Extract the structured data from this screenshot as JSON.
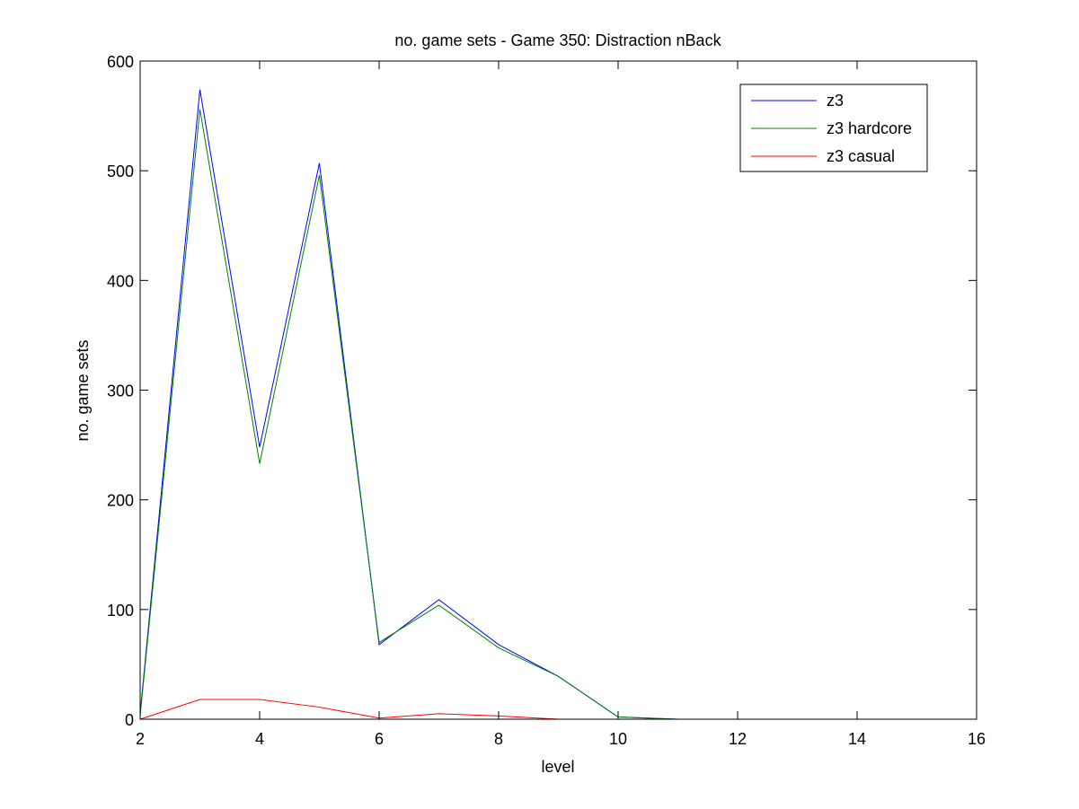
{
  "chart_data": {
    "type": "line",
    "title": "no. game sets - Game 350: Distraction nBack",
    "xlabel": "level",
    "ylabel": "no. game sets",
    "xlim": [
      2,
      16
    ],
    "ylim": [
      0,
      600
    ],
    "x_ticks": [
      2,
      4,
      6,
      8,
      10,
      12,
      14,
      16
    ],
    "y_ticks": [
      0,
      100,
      200,
      300,
      400,
      500,
      600
    ],
    "grid": false,
    "legend_position": "top-right",
    "series": [
      {
        "name": "z3",
        "color": "#0000ff",
        "x": [
          2,
          3,
          4,
          5,
          6,
          7,
          8,
          9,
          10,
          11
        ],
        "y": [
          5,
          574,
          248,
          507,
          68,
          109,
          68,
          39,
          2,
          0
        ]
      },
      {
        "name": "z3 hardcore",
        "color": "#008000",
        "x": [
          2,
          3,
          4,
          5,
          6,
          7,
          8,
          9,
          10,
          11
        ],
        "y": [
          3,
          556,
          233,
          496,
          70,
          104,
          65,
          39,
          2,
          0
        ]
      },
      {
        "name": "z3 casual",
        "color": "#ff0000",
        "x": [
          2,
          3,
          4,
          5,
          6,
          7,
          8,
          9
        ],
        "y": [
          0,
          18,
          18,
          11,
          1,
          5,
          3,
          0
        ]
      }
    ]
  }
}
